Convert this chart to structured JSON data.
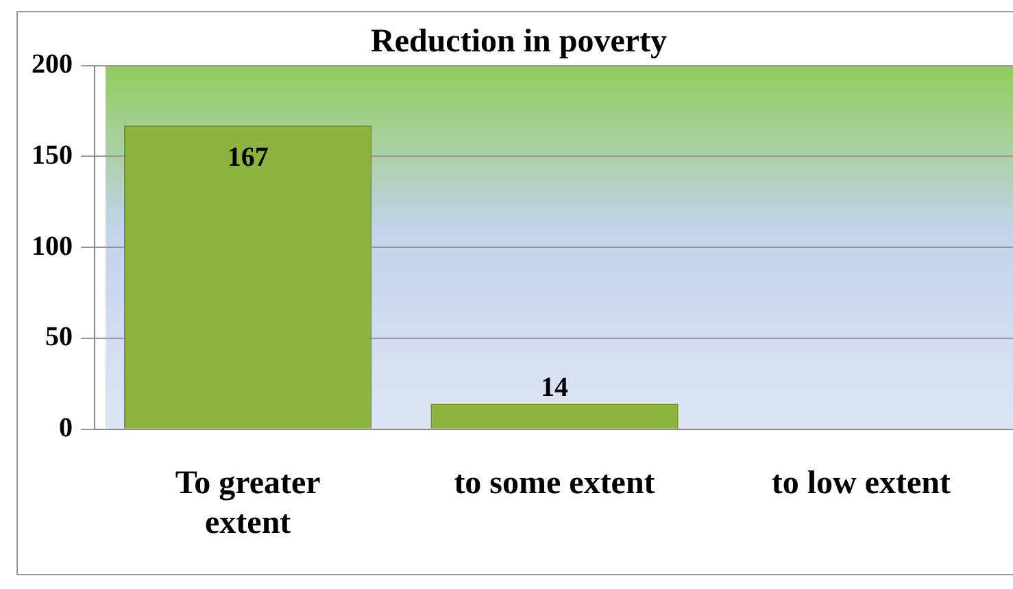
{
  "chart_data": {
    "type": "bar",
    "title": "Reduction in poverty",
    "categories": [
      "To greater extent",
      "to some extent",
      "to low extent"
    ],
    "values": [
      167,
      14,
      null
    ],
    "value_labels": [
      "167",
      "14",
      null
    ],
    "color": "#8db43e",
    "ylim": [
      0,
      200
    ],
    "yticks": [
      0,
      50,
      100,
      150,
      200
    ],
    "grid": "y"
  }
}
